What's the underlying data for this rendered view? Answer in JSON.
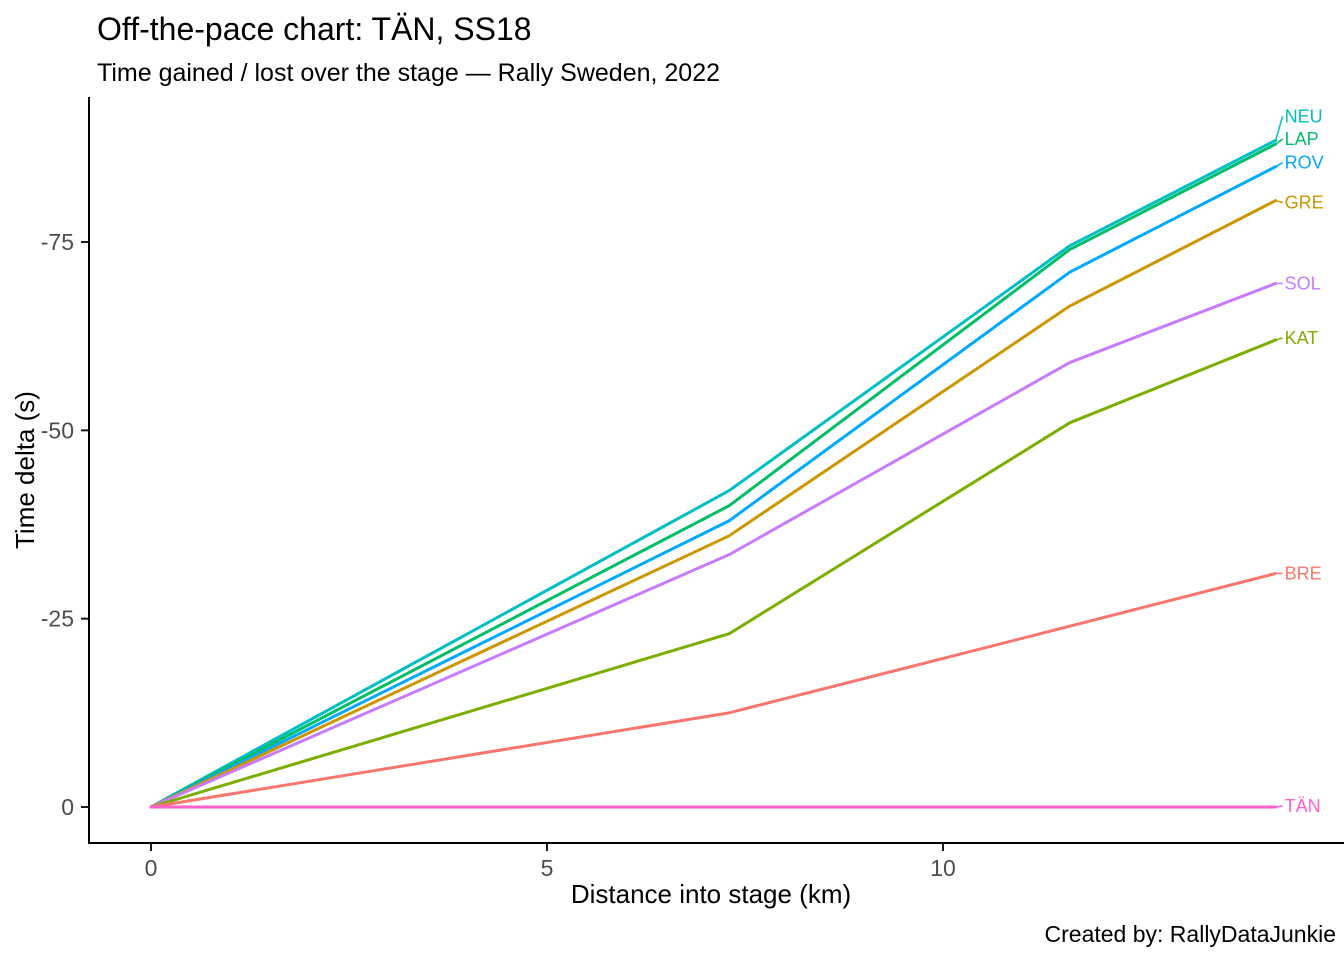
{
  "caption": "Created by: RallyDataJunkie",
  "colors": {
    "background": "#FFFFFF",
    "axis_line": "#000000",
    "tick_mark": "#1A1A1A",
    "tick_text": "#4D4D4D",
    "title_text": "#000000"
  },
  "chart_data": {
    "type": "line",
    "title": "Off-the-pace chart: TÄN, SS18",
    "subtitle": "Time gained / lost over the stage — Rally Sweden, 2022",
    "xlabel": "Distance into stage (km)",
    "ylabel": "Time delta (s)",
    "x": [
      0,
      7.3,
      11.6,
      14.2
    ],
    "series": [
      {
        "name": "NEU",
        "color": "#00BFC4",
        "values": [
          0,
          -42,
          -74.5,
          -88.5
        ],
        "label_dy": -24
      },
      {
        "name": "LAP",
        "color": "#00BE67",
        "values": [
          0,
          -40,
          -74,
          -88
        ],
        "label_dy": -5
      },
      {
        "name": "ROV",
        "color": "#00A9FF",
        "values": [
          0,
          -38,
          -71,
          -85
        ],
        "label_dy": -4
      },
      {
        "name": "GRE",
        "color": "#CD9600",
        "values": [
          0,
          -36,
          -66.5,
          -80.5
        ],
        "label_dy": 2
      },
      {
        "name": "SOL",
        "color": "#C77CFF",
        "values": [
          0,
          -33.5,
          -59,
          -69.5
        ],
        "label_dy": 0
      },
      {
        "name": "KAT",
        "color": "#7CAE00",
        "values": [
          0,
          -23,
          -51,
          -62
        ],
        "label_dy": -2
      },
      {
        "name": "BRE",
        "color": "#F8766D",
        "values": [
          0,
          -12.5,
          -24,
          -31
        ],
        "label_dy": 0
      },
      {
        "name": "TÄN",
        "color": "#FF61CC",
        "values": [
          0,
          0,
          0,
          0
        ],
        "label_dy": -1
      }
    ],
    "x_ticks": [
      0,
      5,
      10
    ],
    "y_ticks": [
      0,
      -25,
      -50,
      -75
    ],
    "xlim": [
      -0.8,
      15.1
    ],
    "ylim_bottom_to_top": [
      5,
      -94
    ],
    "y_axis_note": "negative values plotted upward (0 at bottom, -75 near top)",
    "grid": false,
    "legend_position": "direct labels at right line ends"
  }
}
